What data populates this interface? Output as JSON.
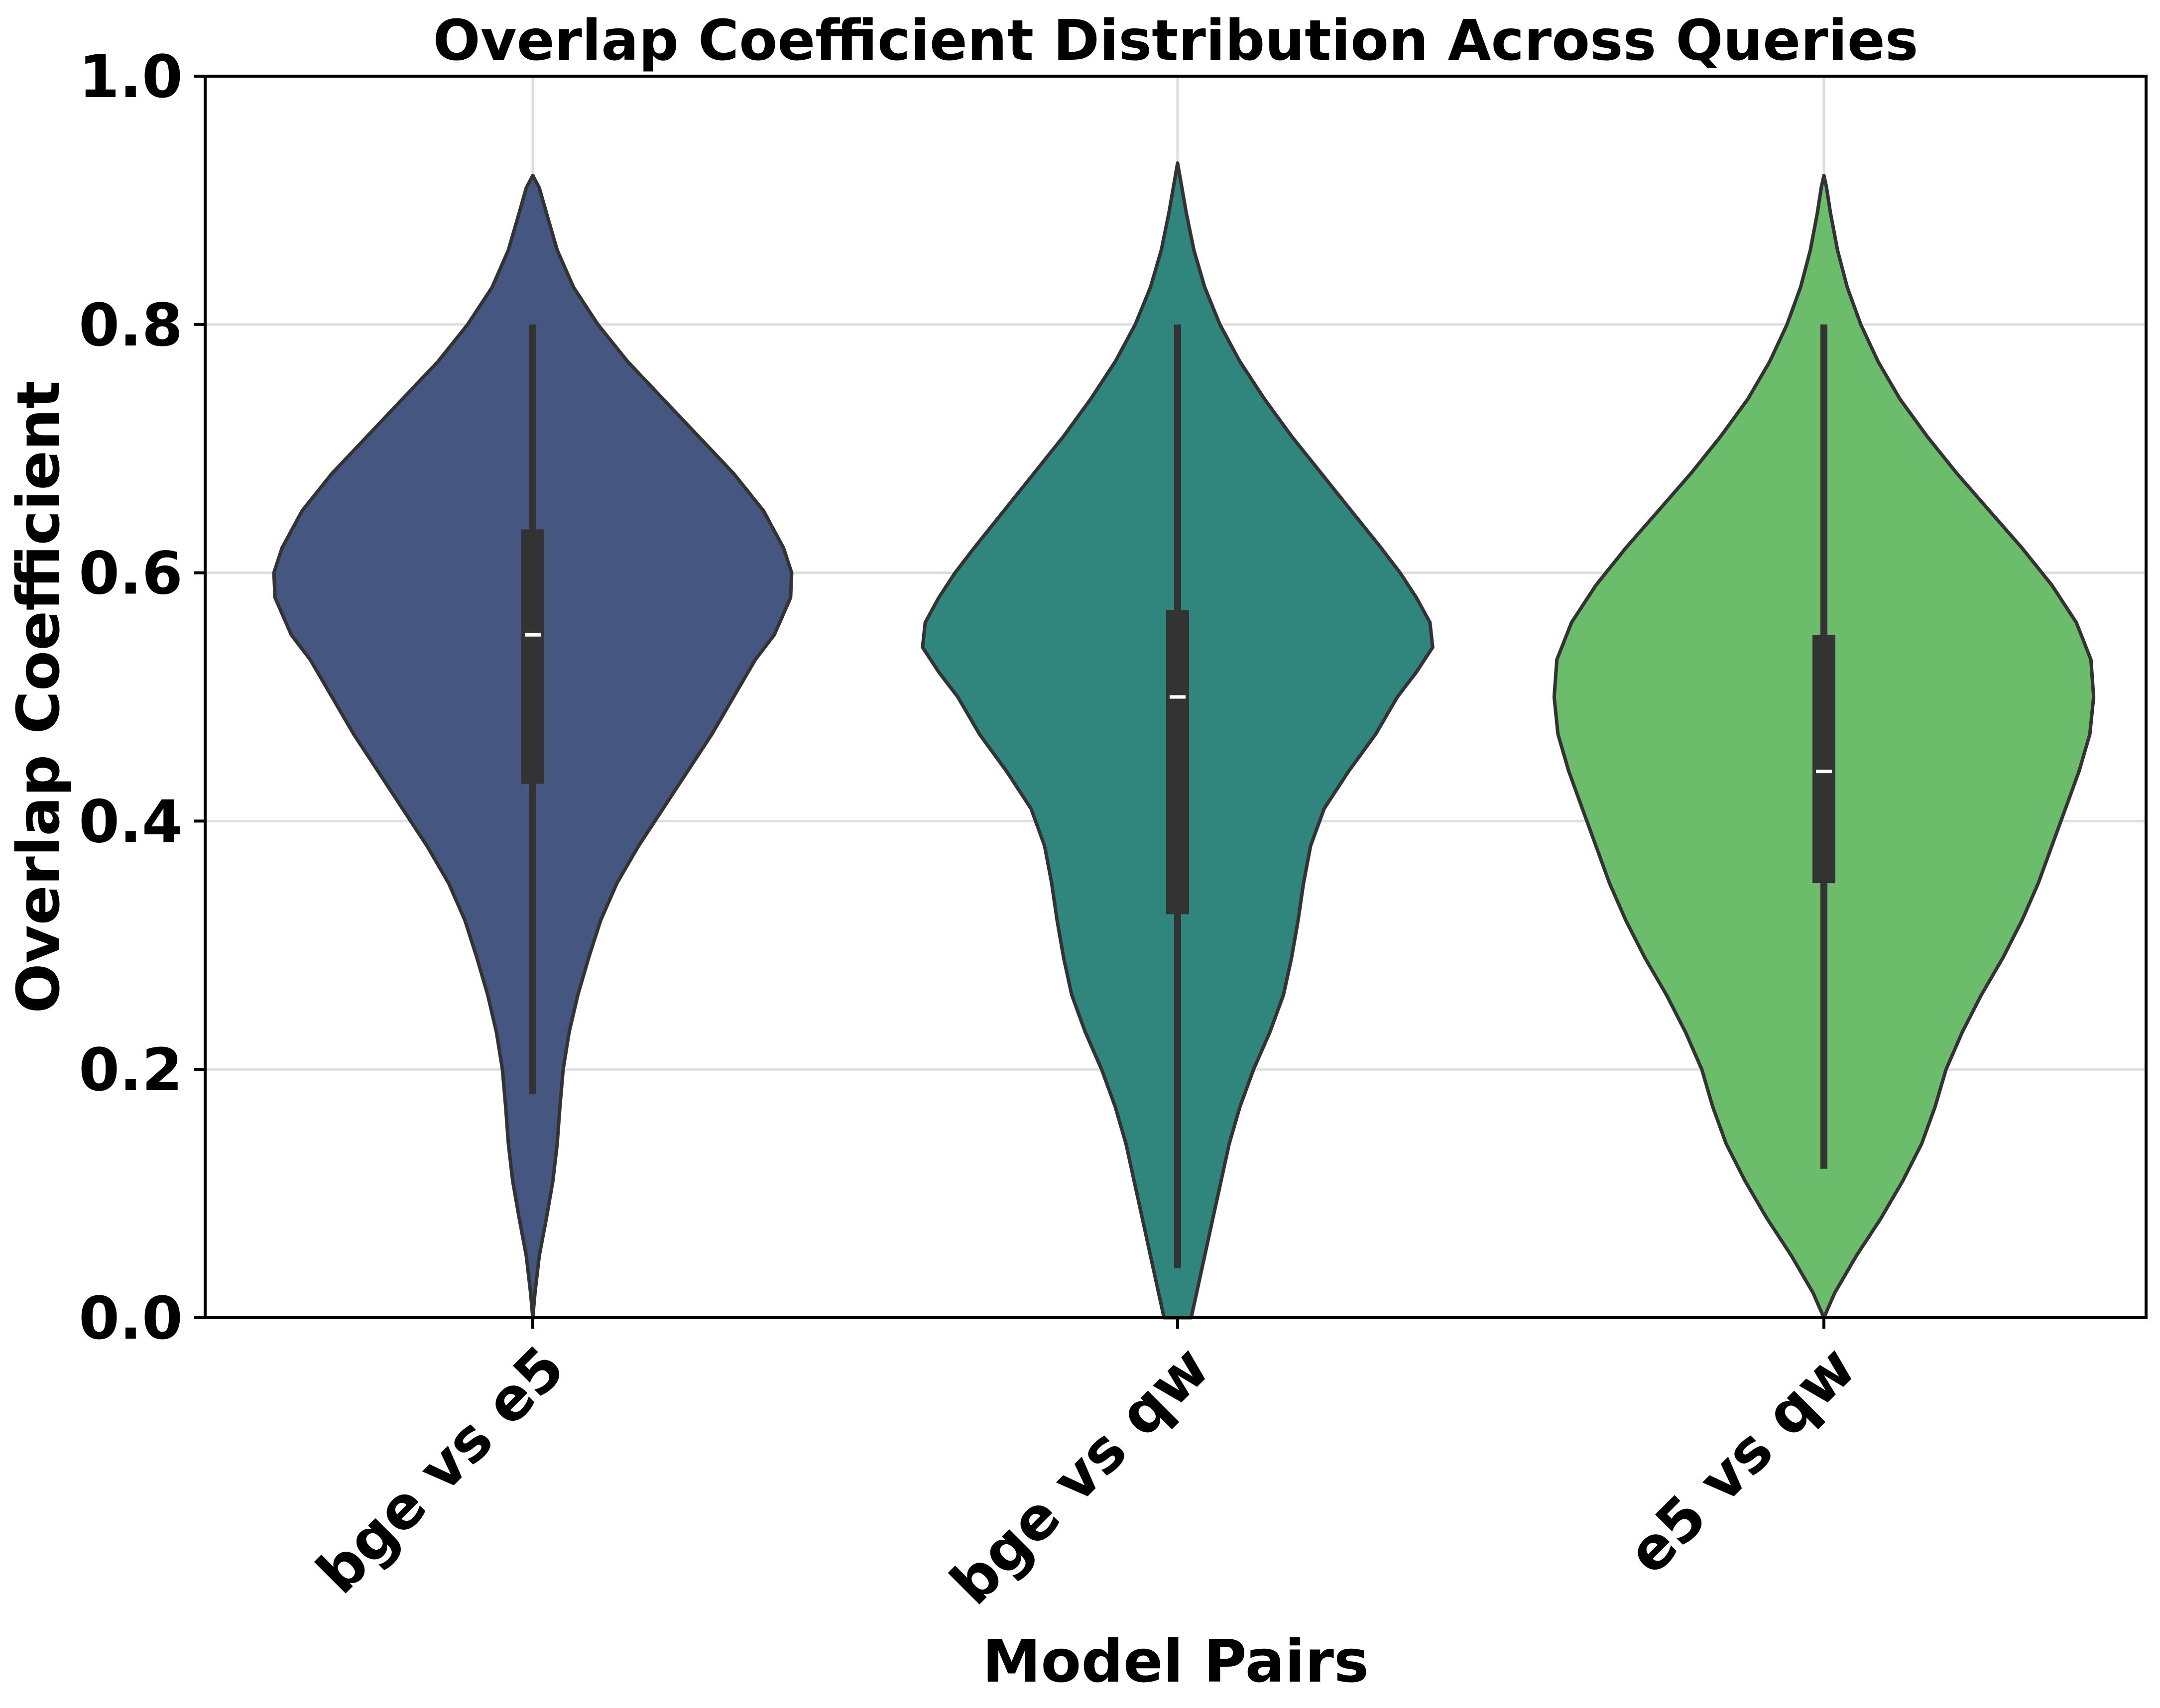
{
  "chart_data": {
    "type": "violin",
    "title": "Overlap Coefficient Distribution Across Queries",
    "xlabel": "Model Pairs",
    "ylabel": "Overlap Coefficient",
    "ylim": [
      0.0,
      1.0
    ],
    "y_ticks": [
      0.0,
      0.2,
      0.4,
      0.6,
      0.8,
      1.0
    ],
    "y_tick_labels": [
      "0.0",
      "0.2",
      "0.4",
      "0.6",
      "0.8",
      "1.0"
    ],
    "grid": true,
    "categories": [
      "bge vs e5",
      "bge vs qw",
      "e5 vs qw"
    ],
    "colors": [
      "#455781",
      "#30857d",
      "#6bbd6c"
    ],
    "series": [
      {
        "name": "bge vs e5",
        "whisker_low": 0.18,
        "q1": 0.43,
        "median": 0.55,
        "q3": 0.635,
        "whisker_high": 0.8,
        "density": [
          [
            0.0,
            0.0
          ],
          [
            0.02,
            0.004
          ],
          [
            0.05,
            0.012
          ],
          [
            0.08,
            0.025
          ],
          [
            0.11,
            0.037
          ],
          [
            0.14,
            0.045
          ],
          [
            0.17,
            0.05
          ],
          [
            0.2,
            0.056
          ],
          [
            0.23,
            0.067
          ],
          [
            0.26,
            0.083
          ],
          [
            0.29,
            0.103
          ],
          [
            0.32,
            0.125
          ],
          [
            0.35,
            0.155
          ],
          [
            0.38,
            0.195
          ],
          [
            0.41,
            0.24
          ],
          [
            0.44,
            0.285
          ],
          [
            0.47,
            0.33
          ],
          [
            0.5,
            0.37
          ],
          [
            0.53,
            0.41
          ],
          [
            0.55,
            0.445
          ],
          [
            0.58,
            0.475
          ],
          [
            0.6,
            0.477
          ],
          [
            0.62,
            0.462
          ],
          [
            0.65,
            0.425
          ],
          [
            0.68,
            0.37
          ],
          [
            0.71,
            0.305
          ],
          [
            0.74,
            0.24
          ],
          [
            0.77,
            0.175
          ],
          [
            0.8,
            0.12
          ],
          [
            0.83,
            0.075
          ],
          [
            0.86,
            0.045
          ],
          [
            0.89,
            0.025
          ],
          [
            0.91,
            0.012
          ],
          [
            0.92,
            0.0
          ]
        ]
      },
      {
        "name": "bge vs qw",
        "whisker_low": 0.04,
        "q1": 0.325,
        "median": 0.5,
        "q3": 0.57,
        "whisker_high": 0.8,
        "density": [
          [
            0.0,
            0.025
          ],
          [
            0.02,
            0.035
          ],
          [
            0.05,
            0.05
          ],
          [
            0.08,
            0.065
          ],
          [
            0.11,
            0.08
          ],
          [
            0.14,
            0.095
          ],
          [
            0.17,
            0.115
          ],
          [
            0.2,
            0.14
          ],
          [
            0.23,
            0.17
          ],
          [
            0.26,
            0.195
          ],
          [
            0.29,
            0.21
          ],
          [
            0.32,
            0.222
          ],
          [
            0.35,
            0.232
          ],
          [
            0.38,
            0.245
          ],
          [
            0.41,
            0.27
          ],
          [
            0.44,
            0.315
          ],
          [
            0.47,
            0.365
          ],
          [
            0.5,
            0.405
          ],
          [
            0.52,
            0.44
          ],
          [
            0.54,
            0.47
          ],
          [
            0.56,
            0.465
          ],
          [
            0.58,
            0.44
          ],
          [
            0.6,
            0.41
          ],
          [
            0.62,
            0.375
          ],
          [
            0.65,
            0.32
          ],
          [
            0.68,
            0.265
          ],
          [
            0.71,
            0.21
          ],
          [
            0.74,
            0.16
          ],
          [
            0.77,
            0.115
          ],
          [
            0.8,
            0.078
          ],
          [
            0.83,
            0.05
          ],
          [
            0.86,
            0.03
          ],
          [
            0.89,
            0.016
          ],
          [
            0.91,
            0.008
          ],
          [
            0.93,
            0.0
          ]
        ]
      },
      {
        "name": "e5 vs qw",
        "whisker_low": 0.12,
        "q1": 0.35,
        "median": 0.44,
        "q3": 0.55,
        "whisker_high": 0.8,
        "density": [
          [
            0.0,
            0.0
          ],
          [
            0.02,
            0.02
          ],
          [
            0.05,
            0.06
          ],
          [
            0.08,
            0.105
          ],
          [
            0.11,
            0.145
          ],
          [
            0.14,
            0.18
          ],
          [
            0.17,
            0.205
          ],
          [
            0.2,
            0.225
          ],
          [
            0.23,
            0.255
          ],
          [
            0.26,
            0.29
          ],
          [
            0.29,
            0.33
          ],
          [
            0.32,
            0.365
          ],
          [
            0.35,
            0.395
          ],
          [
            0.38,
            0.42
          ],
          [
            0.41,
            0.445
          ],
          [
            0.44,
            0.47
          ],
          [
            0.47,
            0.49
          ],
          [
            0.5,
            0.497
          ],
          [
            0.53,
            0.492
          ],
          [
            0.56,
            0.465
          ],
          [
            0.59,
            0.42
          ],
          [
            0.62,
            0.365
          ],
          [
            0.65,
            0.305
          ],
          [
            0.68,
            0.245
          ],
          [
            0.71,
            0.19
          ],
          [
            0.74,
            0.14
          ],
          [
            0.77,
            0.1
          ],
          [
            0.8,
            0.068
          ],
          [
            0.83,
            0.043
          ],
          [
            0.86,
            0.025
          ],
          [
            0.89,
            0.012
          ],
          [
            0.91,
            0.005
          ],
          [
            0.92,
            0.0
          ]
        ]
      }
    ]
  }
}
